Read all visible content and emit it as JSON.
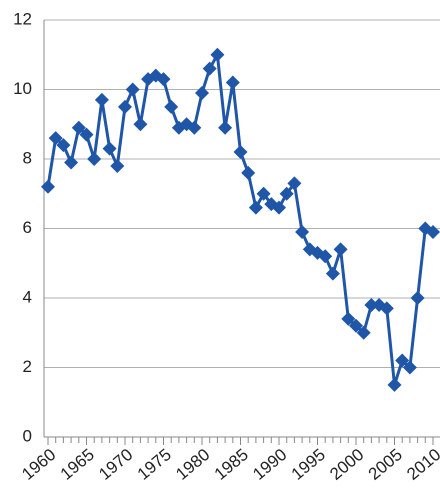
{
  "chart_data": {
    "type": "line",
    "x": [
      1960,
      1961,
      1962,
      1963,
      1964,
      1965,
      1966,
      1967,
      1968,
      1969,
      1970,
      1971,
      1972,
      1973,
      1974,
      1975,
      1976,
      1977,
      1978,
      1979,
      1980,
      1981,
      1982,
      1983,
      1984,
      1985,
      1986,
      1987,
      1988,
      1989,
      1990,
      1991,
      1992,
      1993,
      1994,
      1995,
      1996,
      1997,
      1998,
      1999,
      2000,
      2001,
      2002,
      2003,
      2004,
      2005,
      2006,
      2007,
      2008,
      2009,
      2010
    ],
    "values": [
      7.2,
      8.6,
      8.4,
      7.9,
      8.9,
      8.7,
      8.0,
      9.7,
      8.3,
      7.8,
      9.5,
      10.0,
      9.0,
      10.3,
      10.4,
      10.3,
      9.5,
      8.9,
      9.0,
      8.9,
      9.9,
      10.6,
      11.0,
      8.9,
      10.2,
      8.2,
      7.6,
      6.6,
      7.0,
      6.7,
      6.6,
      7.0,
      7.3,
      5.9,
      5.4,
      5.3,
      5.2,
      4.7,
      5.4,
      3.4,
      3.2,
      3.0,
      3.8,
      3.8,
      3.7,
      1.5,
      2.2,
      2.0,
      4.0,
      6.0,
      5.9
    ],
    "color": "#1f56a8",
    "xlim": [
      1960,
      2010
    ],
    "xticks": [
      1960,
      1965,
      1970,
      1975,
      1980,
      1985,
      1990,
      1995,
      2000,
      2005,
      2010
    ],
    "ylim": [
      0,
      12
    ],
    "yticks": [
      0,
      2,
      4,
      6,
      8,
      10,
      12
    ],
    "grid": true
  }
}
